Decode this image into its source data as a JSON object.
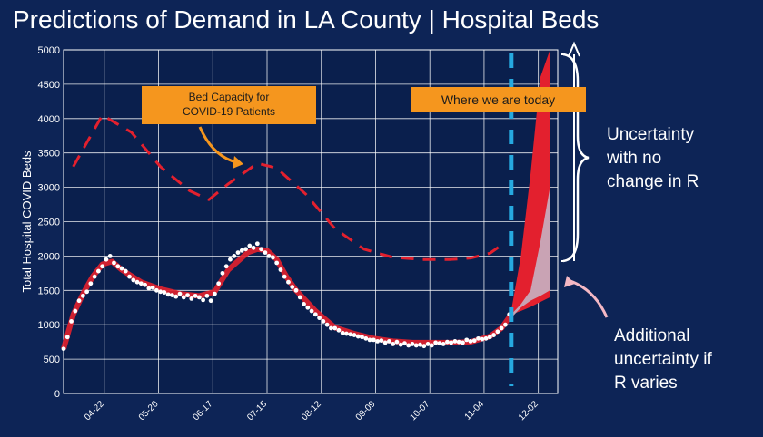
{
  "title": "Predictions of Demand in LA County | Hospital Beds",
  "annotations": {
    "capacity_callout": "Bed Capacity for\nCOVID-19 Patients",
    "today_callout": "Where we are today",
    "uncertainty_no_change": "Uncertainty\nwith no\nchange in R",
    "uncertainty_varies": "Additional\nuncertainty if\nR varies"
  },
  "colors": {
    "background": "#0d2456",
    "plot_background": "#0a1f4d",
    "grid": "#ffffff",
    "capacity_line": "#e3202e",
    "model_line": "#e3202e",
    "observed_points": "#ffffff",
    "today_line": "#26a9e0",
    "callout": "#f5961e",
    "uncertainty_band": "#e3202e",
    "variation_band": "#c9a3b4",
    "arrow_pink": "#f4b8c4"
  },
  "chart_data": {
    "type": "line",
    "ylabel": "Total Hospital COVID Beds",
    "xlabel": "",
    "ylim": [
      0,
      5000
    ],
    "y_ticks": [
      0,
      500,
      1000,
      1500,
      2000,
      2500,
      3000,
      3500,
      4000,
      4500,
      5000
    ],
    "x_tick_labels": [
      "04-22",
      "05-20",
      "06-17",
      "07-15",
      "08-12",
      "09-09",
      "10-07",
      "11-04",
      "12-02"
    ],
    "x_tick_days": [
      21,
      49,
      77,
      105,
      133,
      161,
      189,
      217,
      245
    ],
    "xlim_days": [
      0,
      255
    ],
    "today_day": 231,
    "grid": true,
    "series": [
      {
        "style": "dashed",
        "x": [
          5,
          20,
          35,
          50,
          65,
          75,
          85,
          100,
          110,
          125,
          140,
          155,
          170,
          185,
          200,
          210,
          220,
          228
        ],
        "values": [
          3300,
          4050,
          3800,
          3300,
          2950,
          2820,
          3050,
          3350,
          3280,
          2900,
          2400,
          2100,
          1980,
          1950,
          1950,
          1970,
          2040,
          2200
        ]
      },
      {
        "style": "solid",
        "x": [
          0,
          5,
          10,
          15,
          20,
          25,
          30,
          40,
          50,
          60,
          70,
          78,
          85,
          95,
          100,
          105,
          110,
          115,
          120,
          130,
          140,
          150,
          160,
          170,
          180,
          190,
          200,
          210,
          220,
          226,
          231
        ],
        "values": [
          650,
          1150,
          1450,
          1700,
          1880,
          1920,
          1800,
          1620,
          1520,
          1450,
          1420,
          1480,
          1800,
          2050,
          2100,
          2080,
          1950,
          1700,
          1500,
          1200,
          960,
          870,
          800,
          760,
          740,
          740,
          740,
          750,
          830,
          950,
          1150
        ]
      },
      {
        "style": "points",
        "x": [
          0,
          2,
          4,
          6,
          8,
          10,
          12,
          14,
          16,
          18,
          20,
          22,
          24,
          26,
          28,
          30,
          32,
          34,
          36,
          38,
          40,
          42,
          44,
          46,
          48,
          50,
          52,
          54,
          56,
          58,
          60,
          62,
          64,
          66,
          68,
          70,
          72,
          74,
          76,
          78,
          80,
          82,
          84,
          86,
          88,
          90,
          92,
          94,
          96,
          98,
          100,
          102,
          104,
          106,
          108,
          110,
          112,
          114,
          116,
          118,
          120,
          122,
          124,
          126,
          128,
          130,
          132,
          134,
          136,
          138,
          140,
          142,
          144,
          146,
          148,
          150,
          152,
          154,
          156,
          158,
          160,
          162,
          164,
          166,
          168,
          170,
          172,
          174,
          176,
          178,
          180,
          182,
          184,
          186,
          188,
          190,
          192,
          194,
          196,
          198,
          200,
          202,
          204,
          206,
          208,
          210,
          212,
          214,
          216,
          218,
          220,
          222,
          224,
          226,
          228,
          230
        ],
        "values": [
          650,
          820,
          1050,
          1200,
          1350,
          1420,
          1480,
          1600,
          1700,
          1780,
          1850,
          1950,
          2000,
          1900,
          1850,
          1820,
          1780,
          1700,
          1650,
          1620,
          1600,
          1580,
          1530,
          1540,
          1500,
          1480,
          1470,
          1440,
          1430,
          1410,
          1450,
          1400,
          1430,
          1380,
          1420,
          1400,
          1360,
          1420,
          1350,
          1450,
          1600,
          1750,
          1850,
          1950,
          2000,
          2050,
          2080,
          2100,
          2150,
          2120,
          2180,
          2100,
          2050,
          2000,
          1980,
          1900,
          1800,
          1700,
          1620,
          1550,
          1500,
          1400,
          1300,
          1250,
          1200,
          1150,
          1100,
          1050,
          1000,
          950,
          950,
          920,
          880,
          870,
          860,
          850,
          830,
          820,
          800,
          780,
          780,
          760,
          770,
          740,
          760,
          720,
          750,
          710,
          730,
          700,
          720,
          700,
          710,
          690,
          720,
          700,
          740,
          730,
          720,
          750,
          740,
          760,
          750,
          740,
          780,
          760,
          770,
          800,
          790,
          800,
          820,
          850,
          900,
          950,
          1000,
          1150
        ]
      },
      {
        "style": "band",
        "x": [
          231,
          236,
          241,
          246,
          251
        ],
        "lower": [
          1150,
          1200,
          1260,
          1330,
          1400
        ],
        "upper": [
          1200,
          2000,
          3200,
          4600,
          5000
        ]
      },
      {
        "style": "band-variation",
        "x": [
          231,
          236,
          241,
          246,
          251
        ],
        "lower": [
          1100,
          1250,
          1350,
          1420,
          1500
        ],
        "upper": [
          1150,
          1300,
          1500,
          2200,
          3000
        ]
      }
    ]
  }
}
